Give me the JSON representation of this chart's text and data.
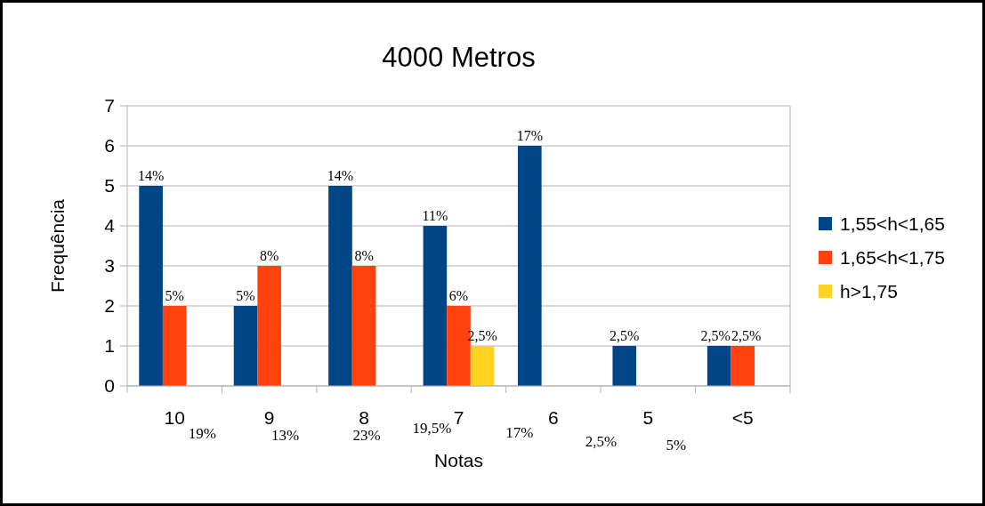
{
  "chart_data": {
    "type": "bar",
    "title": "4000 Metros",
    "xlabel": "Notas",
    "ylabel": "Frequência",
    "categories": [
      "10",
      "9",
      "8",
      "7",
      "6",
      "5",
      "<5"
    ],
    "series": [
      {
        "name": "1,55<h<1,65",
        "color": "#004586",
        "values": [
          5,
          2,
          5,
          4,
          6,
          1,
          1
        ]
      },
      {
        "name": "1,65<h<1,75",
        "color": "#ff420e",
        "values": [
          2,
          3,
          3,
          2,
          null,
          null,
          1
        ]
      },
      {
        "name": "h>1,75",
        "color": "#ffd320",
        "values": [
          null,
          null,
          null,
          1,
          null,
          null,
          null
        ]
      }
    ],
    "annotations": [
      "14%",
      "5%",
      "5%",
      "8%",
      "14%",
      "8%",
      "11%",
      "6%",
      "2,5%",
      "17%",
      "2,5%",
      "2,5%",
      "2,5%",
      "19%",
      "13%",
      "23%",
      "19,5%",
      "17%",
      "2,5%",
      "5%"
    ],
    "ylim": [
      0,
      7
    ],
    "yticks": [
      0,
      1,
      2,
      3,
      4,
      5,
      6,
      7
    ],
    "grid": "y",
    "legend": "right"
  }
}
